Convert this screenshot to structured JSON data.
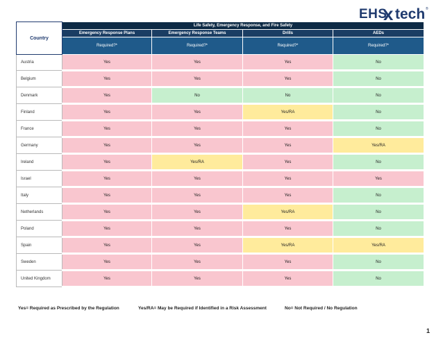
{
  "logo": {
    "ehs": "EHS",
    "x": "x",
    "tech": "tech"
  },
  "table": {
    "country_header": "Country",
    "group_header": "Life Safety, Emergency Response, and Fire Safety",
    "columns": [
      "Emergency Response Plans",
      "Emergency Response Teams",
      "Drills",
      "AEDs"
    ],
    "required_label": "Required?*",
    "rows": [
      {
        "country": "Austria",
        "values": [
          "Yes",
          "Yes",
          "Yes",
          "No"
        ]
      },
      {
        "country": "Belgium",
        "values": [
          "Yes",
          "Yes",
          "Yes",
          "No"
        ]
      },
      {
        "country": "Denmark",
        "values": [
          "Yes",
          "No",
          "No",
          "No"
        ]
      },
      {
        "country": "Finland",
        "values": [
          "Yes",
          "Yes",
          "Yes/RA",
          "No"
        ]
      },
      {
        "country": "France",
        "values": [
          "Yes",
          "Yes",
          "Yes",
          "No"
        ]
      },
      {
        "country": "Germany",
        "values": [
          "Yes",
          "Yes",
          "Yes",
          "Yes/RA"
        ]
      },
      {
        "country": "Ireland",
        "values": [
          "Yes",
          "Yes/RA",
          "Yes",
          "No"
        ]
      },
      {
        "country": "Israel",
        "values": [
          "Yes",
          "Yes",
          "Yes",
          "Yes"
        ]
      },
      {
        "country": "Italy",
        "values": [
          "Yes",
          "Yes",
          "Yes",
          "No"
        ]
      },
      {
        "country": "Netherlands",
        "values": [
          "Yes",
          "Yes",
          "Yes/RA",
          "No"
        ]
      },
      {
        "country": "Poland",
        "values": [
          "Yes",
          "Yes",
          "Yes",
          "No"
        ]
      },
      {
        "country": "Spain",
        "values": [
          "Yes",
          "Yes",
          "Yes/RA",
          "Yes/RA"
        ]
      },
      {
        "country": "Sweden",
        "values": [
          "Yes",
          "Yes",
          "Yes",
          "No"
        ]
      },
      {
        "country": "United Kingdom",
        "values": [
          "Yes",
          "Yes",
          "Yes",
          "No"
        ]
      }
    ]
  },
  "legend": {
    "yes": "Yes= Required as Prescribed by the Regulation",
    "ra": "Yes/RA= May be Required if Identified in a Risk Assessment",
    "no": "No= Not Required / No Regulation"
  },
  "page_number": "1",
  "colors": {
    "yes": "#f9c6cf",
    "no": "#c6efce",
    "ra": "#ffeb9c",
    "header": "#0d2a45"
  }
}
